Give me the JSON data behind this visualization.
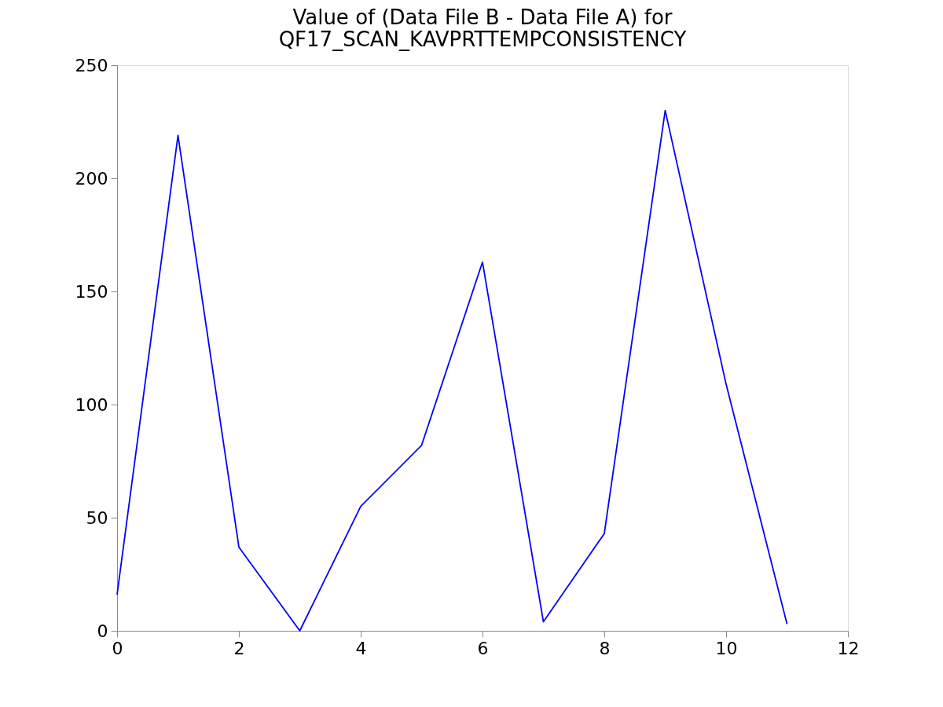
{
  "chart_data": {
    "type": "line",
    "title": "Value of (Data File B - Data File A) for\nQF17_SCAN_KAVPRTTEMPCONSISTENCY",
    "x": [
      0,
      1,
      2,
      3,
      4,
      5,
      6,
      7,
      8,
      9,
      10,
      11
    ],
    "series": [
      {
        "color": "#0000ff",
        "values": [
          16,
          219,
          37,
          0,
          55,
          82,
          163,
          4,
          43,
          230,
          109,
          3
        ]
      }
    ],
    "xlim": [
      0,
      12
    ],
    "xticks": [
      0,
      2,
      4,
      6,
      8,
      10,
      12
    ],
    "ylim": [
      0,
      250
    ],
    "yticks": [
      0,
      50,
      100,
      150,
      200,
      250
    ],
    "grid": false,
    "legend": false,
    "marker": "none",
    "line_style": "solid"
  }
}
